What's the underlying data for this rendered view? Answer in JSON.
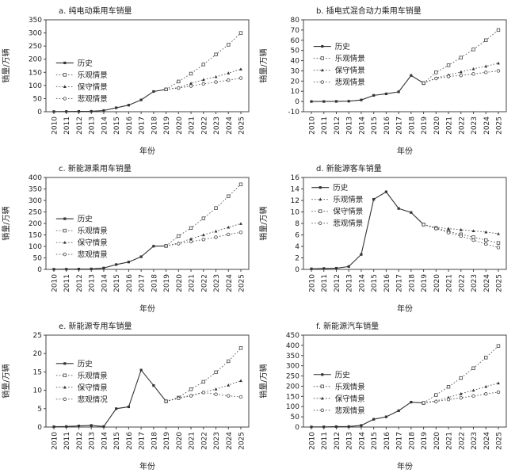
{
  "figure": {
    "description": "六幅新能源汽车销量情景预测折线图",
    "xlabel": "年份",
    "ylabel": "销量/万辆",
    "colors": {
      "history_line": "#333333",
      "scenario_line": "#555555",
      "text": "#222222",
      "border": "#444444",
      "background": "#ffffff"
    }
  },
  "categories": [
    "2010",
    "2011",
    "2012",
    "2013",
    "2014",
    "2015",
    "2016",
    "2017",
    "2018",
    "2019",
    "2020",
    "2021",
    "2022",
    "2023",
    "2024",
    "2025"
  ],
  "chart_data": [
    {
      "id": "a",
      "type": "line",
      "title": "a. 纯电动乘用车销量",
      "ylabel": "销量/万辆",
      "xlabel": "年份",
      "ylim": [
        0,
        350
      ],
      "ytick": 50,
      "grid": false,
      "legend_position": "inside-left",
      "legend_pos": [
        0.05,
        0.4
      ],
      "series": [
        {
          "name": "历史",
          "marker": "filled-square",
          "dash": "solid",
          "values": [
            0.5,
            0.8,
            1.3,
            1.7,
            4.5,
            15,
            25,
            45,
            77,
            85,
            null,
            null,
            null,
            null,
            null,
            null
          ]
        },
        {
          "name": "乐观情景",
          "marker": "open-square",
          "dash": "dot",
          "values": [
            null,
            null,
            null,
            null,
            null,
            null,
            null,
            null,
            null,
            85,
            115,
            145,
            180,
            218,
            255,
            300
          ]
        },
        {
          "name": "保守情景",
          "marker": "filled-triangle",
          "dash": "dot",
          "values": [
            null,
            null,
            null,
            null,
            null,
            null,
            null,
            null,
            null,
            85,
            92,
            108,
            122,
            133,
            147,
            162
          ]
        },
        {
          "name": "悲观情景",
          "marker": "open-circle",
          "dash": "dot",
          "values": [
            null,
            null,
            null,
            null,
            null,
            null,
            null,
            null,
            null,
            85,
            90,
            98,
            106,
            113,
            120,
            128
          ]
        }
      ]
    },
    {
      "id": "b",
      "type": "line",
      "title": "b. 插电式混合动力乘用车销量",
      "ylabel": "销量/万辆",
      "xlabel": "年份",
      "ylim": [
        -10,
        80
      ],
      "ytick": 10,
      "grid": false,
      "legend_position": "inside-left",
      "legend_pos": [
        0.05,
        0.22
      ],
      "series": [
        {
          "name": "历史",
          "marker": "filled-square",
          "dash": "solid",
          "values": [
            0,
            0,
            0.1,
            0.3,
            1.5,
            6,
            7.5,
            9.5,
            25.5,
            18,
            null,
            null,
            null,
            null,
            null,
            null
          ]
        },
        {
          "name": "乐观情景",
          "marker": "open-square",
          "dash": "dot",
          "values": [
            null,
            null,
            null,
            null,
            null,
            null,
            null,
            null,
            null,
            18,
            28.5,
            35.5,
            43,
            51,
            60,
            70
          ]
        },
        {
          "name": "保守情景",
          "marker": "filled-triangle",
          "dash": "dot",
          "values": [
            null,
            null,
            null,
            null,
            null,
            null,
            null,
            null,
            null,
            18,
            23,
            26,
            29,
            32,
            34.5,
            37.5
          ]
        },
        {
          "name": "悲观情景",
          "marker": "open-circle",
          "dash": "dot",
          "values": [
            null,
            null,
            null,
            null,
            null,
            null,
            null,
            null,
            null,
            18,
            22.5,
            24.5,
            25.5,
            27,
            28.5,
            30
          ]
        }
      ]
    },
    {
      "id": "c",
      "type": "line",
      "title": "c. 新能源乘用车销量",
      "ylabel": "销量/万辆",
      "xlabel": "年份",
      "ylim": [
        0,
        400
      ],
      "ytick": 50,
      "grid": false,
      "legend_position": "inside-left",
      "legend_pos": [
        0.05,
        0.38
      ],
      "series": [
        {
          "name": "历史",
          "marker": "filled-square",
          "dash": "solid",
          "values": [
            0.7,
            1,
            1.5,
            2,
            6,
            21,
            32,
            55,
            101,
            102,
            null,
            null,
            null,
            null,
            null,
            null
          ]
        },
        {
          "name": "乐观情景",
          "marker": "open-square",
          "dash": "dot",
          "values": [
            null,
            null,
            null,
            null,
            null,
            null,
            null,
            null,
            null,
            102,
            145,
            180,
            222,
            267,
            318,
            370
          ]
        },
        {
          "name": "保守情景",
          "marker": "filled-triangle",
          "dash": "dot",
          "values": [
            null,
            null,
            null,
            null,
            null,
            null,
            null,
            null,
            null,
            102,
            115,
            133,
            150,
            166,
            183,
            199
          ]
        },
        {
          "name": "悲观情景",
          "marker": "open-circle",
          "dash": "dot",
          "values": [
            null,
            null,
            null,
            null,
            null,
            null,
            null,
            null,
            null,
            102,
            112,
            121,
            130,
            140,
            152,
            161
          ]
        }
      ]
    },
    {
      "id": "d",
      "type": "line",
      "title": "d. 新能源客车销量",
      "ylabel": "销量/万辆",
      "xlabel": "年份",
      "ylim": [
        0,
        16
      ],
      "ytick": 2,
      "grid": false,
      "legend_position": "inside-top-left",
      "legend_pos": [
        0.04,
        0.04
      ],
      "series": [
        {
          "name": "历史",
          "marker": "filled-square",
          "dash": "solid",
          "values": [
            0.1,
            0.15,
            0.2,
            0.5,
            2.6,
            12.2,
            13.5,
            10.6,
            9.9,
            7.8,
            null,
            null,
            null,
            null,
            null,
            null
          ]
        },
        {
          "name": "乐观情景",
          "marker": "filled-triangle",
          "dash": "dot",
          "values": [
            null,
            null,
            null,
            null,
            null,
            null,
            null,
            null,
            null,
            7.8,
            7.3,
            7.1,
            6.9,
            6.7,
            6.5,
            6.2
          ]
        },
        {
          "name": "保守情景",
          "marker": "open-square",
          "dash": "dot",
          "values": [
            null,
            null,
            null,
            null,
            null,
            null,
            null,
            null,
            null,
            7.8,
            7.2,
            6.6,
            6.1,
            5.6,
            5.1,
            4.6
          ]
        },
        {
          "name": "悲观情景",
          "marker": "open-circle",
          "dash": "dot",
          "values": [
            null,
            null,
            null,
            null,
            null,
            null,
            null,
            null,
            null,
            7.8,
            7.1,
            6.4,
            5.8,
            5.1,
            4.4,
            3.8
          ]
        }
      ]
    },
    {
      "id": "e",
      "type": "line",
      "title": "e. 新能源专用车销量",
      "ylabel": "销量/万辆",
      "xlabel": "年份",
      "ylim": [
        0,
        25
      ],
      "ytick": 5,
      "grid": false,
      "legend_position": "inside-left",
      "legend_pos": [
        0.05,
        0.24
      ],
      "series": [
        {
          "name": "历史",
          "marker": "filled-square",
          "dash": "solid",
          "values": [
            0.1,
            0.15,
            0.3,
            0.45,
            0.15,
            5,
            5.5,
            15.5,
            11.3,
            7,
            null,
            null,
            null,
            null,
            null,
            null
          ]
        },
        {
          "name": "乐观情景",
          "marker": "open-square",
          "dash": "dot",
          "values": [
            null,
            null,
            null,
            null,
            null,
            null,
            null,
            null,
            null,
            7,
            8,
            10.3,
            12.3,
            14.9,
            17.9,
            21.5
          ]
        },
        {
          "name": "保守情景",
          "marker": "filled-triangle",
          "dash": "dot",
          "values": [
            null,
            null,
            null,
            null,
            null,
            null,
            null,
            null,
            null,
            7,
            7.9,
            8.6,
            9.5,
            10.3,
            11.4,
            12.6
          ]
        },
        {
          "name": "悲观情况",
          "marker": "open-circle",
          "dash": "dot",
          "values": [
            null,
            null,
            null,
            null,
            null,
            null,
            null,
            null,
            null,
            7,
            7.8,
            8.5,
            9.4,
            8.9,
            8.5,
            8.2
          ]
        }
      ]
    },
    {
      "id": "f",
      "type": "line",
      "title": "f. 新能源汽车销量",
      "ylabel": "销量/万辆",
      "xlabel": "年份",
      "ylim": [
        0,
        450
      ],
      "ytick": 50,
      "grid": false,
      "legend_position": "inside-left",
      "legend_pos": [
        0.05,
        0.36
      ],
      "series": [
        {
          "name": "历史",
          "marker": "filled-square",
          "dash": "solid",
          "values": [
            0.8,
            1,
            2,
            2.5,
            8,
            38,
            50,
            80,
            122,
            118,
            null,
            null,
            null,
            null,
            null,
            null
          ]
        },
        {
          "name": "乐观情景",
          "marker": "open-square",
          "dash": "dot",
          "values": [
            null,
            null,
            null,
            null,
            null,
            null,
            null,
            null,
            null,
            118,
            157,
            197,
            240,
            288,
            340,
            397
          ]
        },
        {
          "name": "保守情景",
          "marker": "filled-triangle",
          "dash": "dot",
          "values": [
            null,
            null,
            null,
            null,
            null,
            null,
            null,
            null,
            null,
            118,
            128,
            145,
            163,
            180,
            198,
            215
          ]
        },
        {
          "name": "悲观情景",
          "marker": "open-circle",
          "dash": "dot",
          "values": [
            null,
            null,
            null,
            null,
            null,
            null,
            null,
            null,
            null,
            118,
            125,
            135,
            143,
            152,
            162,
            171
          ]
        }
      ]
    }
  ]
}
